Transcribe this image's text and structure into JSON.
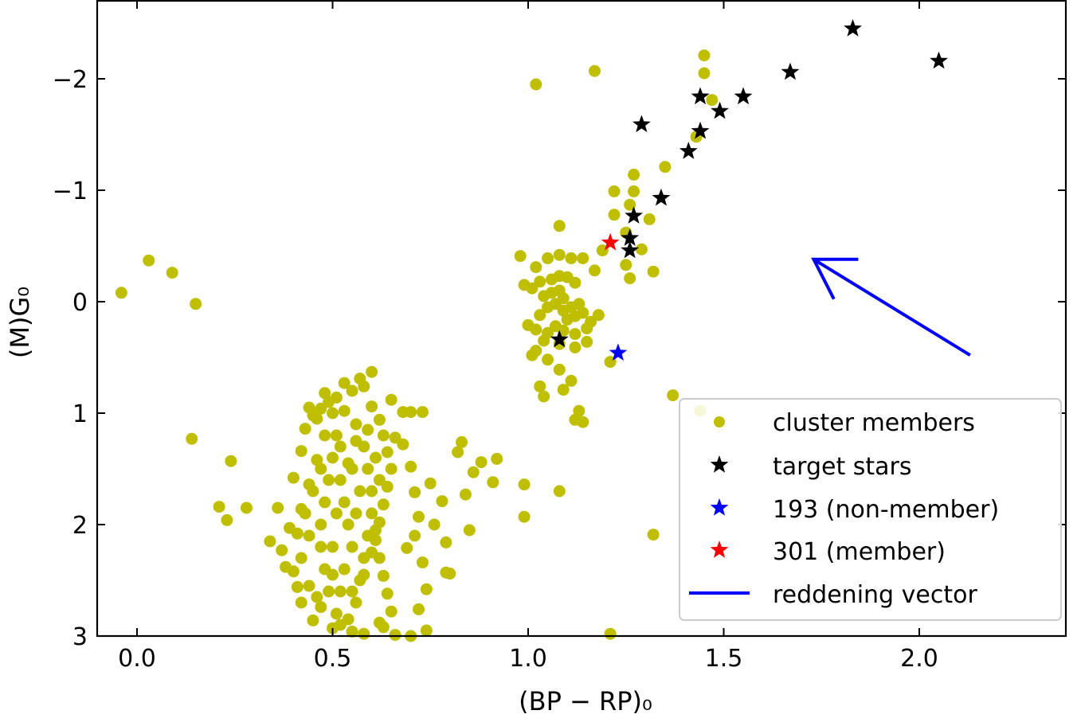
{
  "chart_data": {
    "type": "scatter",
    "title": "",
    "xlabel": "(BP − RP)₀",
    "ylabel": "(M)G₀",
    "xlim": [
      -0.1,
      2.4
    ],
    "ylim": [
      3,
      -2.7
    ],
    "y_inverted": true,
    "xticks": [
      0.0,
      0.5,
      1.0,
      1.5,
      2.0
    ],
    "xtick_labels": [
      "0.0",
      "0.5",
      "1.0",
      "1.5",
      "2.0"
    ],
    "yticks": [
      -2,
      -1,
      0,
      1,
      2,
      3
    ],
    "ytick_labels": [
      "−2",
      "−1",
      "0",
      "1",
      "2",
      "3"
    ],
    "legend_position": "bottom-right",
    "series": [
      {
        "name": "cluster members",
        "marker": "circle",
        "color": "#bfbf00",
        "points": [
          [
            -0.04,
            -0.08
          ],
          [
            0.03,
            -0.37
          ],
          [
            0.09,
            -0.26
          ],
          [
            0.15,
            0.02
          ],
          [
            0.14,
            1.23
          ],
          [
            0.24,
            1.43
          ],
          [
            0.21,
            1.84
          ],
          [
            0.23,
            1.96
          ],
          [
            0.28,
            1.85
          ],
          [
            0.34,
            2.15
          ],
          [
            0.38,
            2.38
          ],
          [
            0.41,
            2.56
          ],
          [
            1.02,
            -1.95
          ],
          [
            1.17,
            -2.07
          ],
          [
            1.45,
            -2.21
          ],
          [
            1.45,
            -2.05
          ],
          [
            1.47,
            -1.81
          ],
          [
            1.43,
            -1.48
          ],
          [
            1.35,
            -1.21
          ],
          [
            1.27,
            -1.14
          ],
          [
            1.26,
            -0.87
          ],
          [
            1.27,
            -0.99
          ],
          [
            1.22,
            -0.99
          ],
          [
            1.22,
            -0.78
          ],
          [
            1.31,
            -0.74
          ],
          [
            1.25,
            -0.62
          ],
          [
            1.29,
            -0.47
          ],
          [
            1.19,
            -0.46
          ],
          [
            1.25,
            -0.33
          ],
          [
            1.32,
            -0.27
          ],
          [
            1.26,
            -0.21
          ],
          [
            1.17,
            -0.28
          ],
          [
            1.08,
            -0.68
          ],
          [
            0.98,
            -0.41
          ],
          [
            1.02,
            -0.31
          ],
          [
            1.05,
            -0.39
          ],
          [
            1.08,
            -0.42
          ],
          [
            1.11,
            -0.39
          ],
          [
            1.14,
            -0.39
          ],
          [
            0.99,
            -0.15
          ],
          [
            1.01,
            -0.12
          ],
          [
            1.03,
            -0.18
          ],
          [
            1.06,
            -0.2
          ],
          [
            1.08,
            -0.23
          ],
          [
            1.1,
            -0.22
          ],
          [
            1.12,
            -0.17
          ],
          [
            1.04,
            -0.05
          ],
          [
            1.06,
            -0.08
          ],
          [
            1.08,
            -0.1
          ],
          [
            1.09,
            -0.03
          ],
          [
            1.07,
            0.02
          ],
          [
            1.05,
            0.05
          ],
          [
            1.09,
            0.08
          ],
          [
            1.11,
            0.05
          ],
          [
            1.13,
            0.02
          ],
          [
            1.14,
            0.1
          ],
          [
            1.12,
            0.13
          ],
          [
            1.1,
            0.16
          ],
          [
            1.03,
            0.12
          ],
          [
            1.0,
            0.21
          ],
          [
            1.02,
            0.25
          ],
          [
            1.05,
            0.28
          ],
          [
            1.07,
            0.22
          ],
          [
            1.09,
            0.26
          ],
          [
            1.12,
            0.29
          ],
          [
            1.15,
            0.24
          ],
          [
            1.16,
            0.18
          ],
          [
            1.18,
            0.12
          ],
          [
            1.15,
            0.36
          ],
          [
            1.12,
            0.41
          ],
          [
            1.08,
            0.38
          ],
          [
            1.04,
            0.35
          ],
          [
            1.02,
            0.44
          ],
          [
            1.01,
            0.48
          ],
          [
            1.05,
            0.52
          ],
          [
            1.08,
            0.61
          ],
          [
            1.11,
            0.71
          ],
          [
            1.03,
            0.76
          ],
          [
            1.04,
            0.85
          ],
          [
            1.09,
            0.79
          ],
          [
            1.13,
            0.98
          ],
          [
            1.12,
            1.06
          ],
          [
            1.14,
            1.08
          ],
          [
            1.21,
            0.54
          ],
          [
            1.37,
            0.84
          ],
          [
            1.44,
            0.98
          ],
          [
            1.32,
            2.09
          ],
          [
            1.21,
            2.98
          ],
          [
            1.08,
            1.7
          ],
          [
            0.92,
            1.41
          ],
          [
            0.91,
            1.62
          ],
          [
            0.88,
            1.44
          ],
          [
            0.86,
            1.53
          ],
          [
            0.82,
            1.35
          ],
          [
            0.83,
            1.26
          ],
          [
            0.84,
            1.73
          ],
          [
            0.85,
            2.05
          ],
          [
            0.79,
            2.16
          ],
          [
            0.8,
            2.44
          ],
          [
            0.99,
            1.64
          ],
          [
            0.99,
            1.93
          ],
          [
            0.6,
            0.63
          ],
          [
            0.57,
            0.69
          ],
          [
            0.53,
            0.73
          ],
          [
            0.48,
            0.82
          ],
          [
            0.44,
            0.95
          ],
          [
            0.46,
            1.05
          ],
          [
            0.65,
            0.88
          ],
          [
            0.68,
            0.99
          ],
          [
            0.7,
            0.99
          ],
          [
            0.73,
            0.99
          ],
          [
            0.66,
            1.22
          ],
          [
            0.68,
            1.28
          ],
          [
            0.7,
            1.48
          ],
          [
            0.71,
            1.71
          ],
          [
            0.72,
            1.93
          ],
          [
            0.71,
            2.1
          ],
          [
            0.69,
            2.21
          ],
          [
            0.75,
            1.63
          ],
          [
            0.78,
            1.79
          ],
          [
            0.76,
            2.0
          ],
          [
            0.79,
            2.43
          ],
          [
            0.73,
            2.34
          ],
          [
            0.74,
            2.58
          ],
          [
            0.72,
            2.76
          ],
          [
            0.74,
            2.95
          ],
          [
            0.7,
            3.0
          ],
          [
            0.66,
            2.99
          ],
          [
            0.62,
            2.88
          ],
          [
            0.55,
            2.96
          ],
          [
            0.5,
            2.93
          ],
          [
            0.45,
            2.86
          ],
          [
            0.42,
            2.7
          ],
          [
            0.4,
            2.42
          ],
          [
            0.37,
            2.23
          ],
          [
            0.39,
            2.03
          ],
          [
            0.36,
            1.85
          ],
          [
            0.4,
            1.58
          ],
          [
            0.42,
            1.34
          ],
          [
            0.43,
            1.14
          ],
          [
            0.45,
            1.02
          ],
          [
            0.47,
            0.96
          ],
          [
            0.49,
            0.9
          ],
          [
            0.51,
            0.86
          ],
          [
            0.55,
            0.8
          ],
          [
            0.58,
            0.76
          ],
          [
            0.6,
            0.94
          ],
          [
            0.62,
            1.06
          ],
          [
            0.63,
            1.2
          ],
          [
            0.64,
            1.35
          ],
          [
            0.65,
            1.5
          ],
          [
            0.64,
            1.66
          ],
          [
            0.63,
            1.82
          ],
          [
            0.62,
            1.98
          ],
          [
            0.61,
            2.14
          ],
          [
            0.62,
            2.3
          ],
          [
            0.63,
            2.46
          ],
          [
            0.64,
            2.62
          ],
          [
            0.65,
            2.78
          ],
          [
            0.63,
            2.92
          ],
          [
            0.58,
            2.98
          ],
          [
            0.52,
            2.9
          ],
          [
            0.47,
            2.74
          ],
          [
            0.44,
            2.55
          ],
          [
            0.42,
            2.3
          ],
          [
            0.41,
            2.08
          ],
          [
            0.42,
            1.86
          ],
          [
            0.44,
            1.64
          ],
          [
            0.46,
            1.42
          ],
          [
            0.48,
            1.2
          ],
          [
            0.5,
            1.0
          ],
          [
            0.53,
            0.98
          ],
          [
            0.56,
            1.1
          ],
          [
            0.58,
            1.3
          ],
          [
            0.59,
            1.5
          ],
          [
            0.6,
            1.7
          ],
          [
            0.6,
            1.9
          ],
          [
            0.59,
            2.1
          ],
          [
            0.58,
            2.3
          ],
          [
            0.57,
            2.5
          ],
          [
            0.56,
            2.7
          ],
          [
            0.54,
            2.85
          ],
          [
            0.49,
            2.6
          ],
          [
            0.48,
            2.4
          ],
          [
            0.47,
            2.2
          ],
          [
            0.47,
            2.0
          ],
          [
            0.48,
            1.8
          ],
          [
            0.49,
            1.6
          ],
          [
            0.5,
            1.4
          ],
          [
            0.51,
            1.2
          ],
          [
            0.52,
            1.6
          ],
          [
            0.53,
            1.8
          ],
          [
            0.54,
            2.0
          ],
          [
            0.55,
            2.2
          ],
          [
            0.53,
            2.4
          ],
          [
            0.52,
            2.6
          ],
          [
            0.51,
            2.8
          ],
          [
            0.5,
            2.2
          ],
          [
            0.51,
            1.9
          ],
          [
            0.52,
            1.3
          ],
          [
            0.55,
            1.5
          ],
          [
            0.57,
            1.7
          ],
          [
            0.56,
            1.9
          ],
          [
            0.5,
            2.45
          ],
          [
            0.46,
            2.65
          ],
          [
            0.44,
            2.1
          ],
          [
            0.43,
            1.9
          ],
          [
            0.45,
            1.7
          ],
          [
            0.47,
            1.5
          ],
          [
            0.55,
            2.6
          ],
          [
            0.58,
            2.45
          ],
          [
            0.6,
            2.25
          ],
          [
            0.61,
            2.05
          ],
          [
            0.62,
            1.6
          ],
          [
            0.61,
            1.4
          ],
          [
            0.59,
            1.15
          ],
          [
            0.56,
            1.25
          ],
          [
            0.54,
            1.45
          ]
        ]
      },
      {
        "name": "target stars",
        "marker": "star",
        "color": "#000000",
        "points": [
          [
            1.83,
            -2.45
          ],
          [
            2.05,
            -2.16
          ],
          [
            1.67,
            -2.06
          ],
          [
            1.44,
            -1.84
          ],
          [
            1.55,
            -1.84
          ],
          [
            1.49,
            -1.71
          ],
          [
            1.29,
            -1.59
          ],
          [
            1.44,
            -1.53
          ],
          [
            1.41,
            -1.35
          ],
          [
            1.34,
            -0.93
          ],
          [
            1.27,
            -0.77
          ],
          [
            1.26,
            -0.57
          ],
          [
            1.26,
            -0.46
          ],
          [
            1.08,
            0.34
          ]
        ]
      },
      {
        "name": "193 (non-member)",
        "marker": "star",
        "color": "#0000ff",
        "points": [
          [
            1.23,
            0.46
          ]
        ]
      },
      {
        "name": "301 (member)",
        "marker": "star",
        "color": "#ff0000",
        "points": [
          [
            1.21,
            -0.53
          ]
        ]
      }
    ],
    "reddening_vector": {
      "name": "reddening vector",
      "color": "#0000ff",
      "from": [
        2.13,
        0.48
      ],
      "to": [
        1.73,
        -0.38
      ]
    },
    "legend": [
      "cluster members",
      "target stars",
      "193 (non-member)",
      "301 (member)",
      "reddening vector"
    ]
  }
}
